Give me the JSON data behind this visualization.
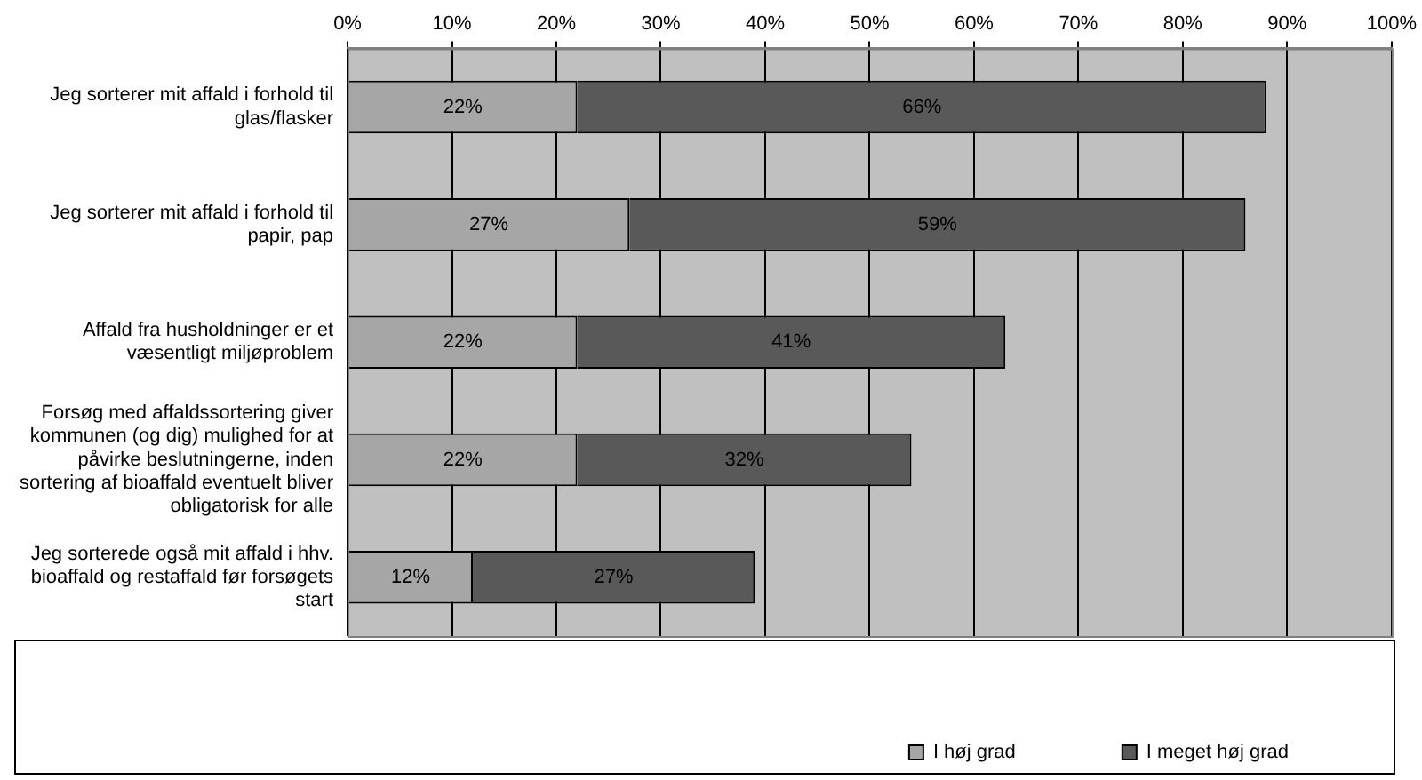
{
  "chart_data": {
    "type": "bar",
    "orientation": "horizontal",
    "stacked": true,
    "categories": [
      "Jeg sorterer mit affald i forhold til glas/flasker",
      "Jeg sorterer mit affald i forhold til papir, pap",
      "Affald fra husholdninger er et væsentligt miljøproblem",
      "Forsøg med affaldssortering giver kommunen (og dig) mulighed for at påvirke beslutningerne, inden sortering af bioaffald eventuelt bliver obligatorisk for alle",
      "Jeg sorterede også mit affald i hhv. bioaffald og restaffald før forsøgets start"
    ],
    "series": [
      {
        "name": "I høj grad",
        "color": "#a6a6a6",
        "values": [
          22,
          27,
          22,
          22,
          12
        ],
        "value_labels": [
          "22%",
          "27%",
          "22%",
          "22%",
          "12%"
        ]
      },
      {
        "name": "I meget høj grad",
        "color": "#595959",
        "values": [
          66,
          59,
          41,
          32,
          27
        ],
        "value_labels": [
          "66%",
          "59%",
          "41%",
          "32%",
          "27%"
        ]
      }
    ],
    "xlim": [
      0,
      100
    ],
    "xticks": [
      {
        "value": 0,
        "label": "0%"
      },
      {
        "value": 10,
        "label": "10%"
      },
      {
        "value": 20,
        "label": "20%"
      },
      {
        "value": 30,
        "label": "30%"
      },
      {
        "value": 40,
        "label": "40%"
      },
      {
        "value": 50,
        "label": "50%"
      },
      {
        "value": 60,
        "label": "60%"
      },
      {
        "value": 70,
        "label": "70%"
      },
      {
        "value": 80,
        "label": "80%"
      },
      {
        "value": 90,
        "label": "90%"
      },
      {
        "value": 100,
        "label": "100%"
      }
    ],
    "grid": "x",
    "legend": "bottom right"
  }
}
